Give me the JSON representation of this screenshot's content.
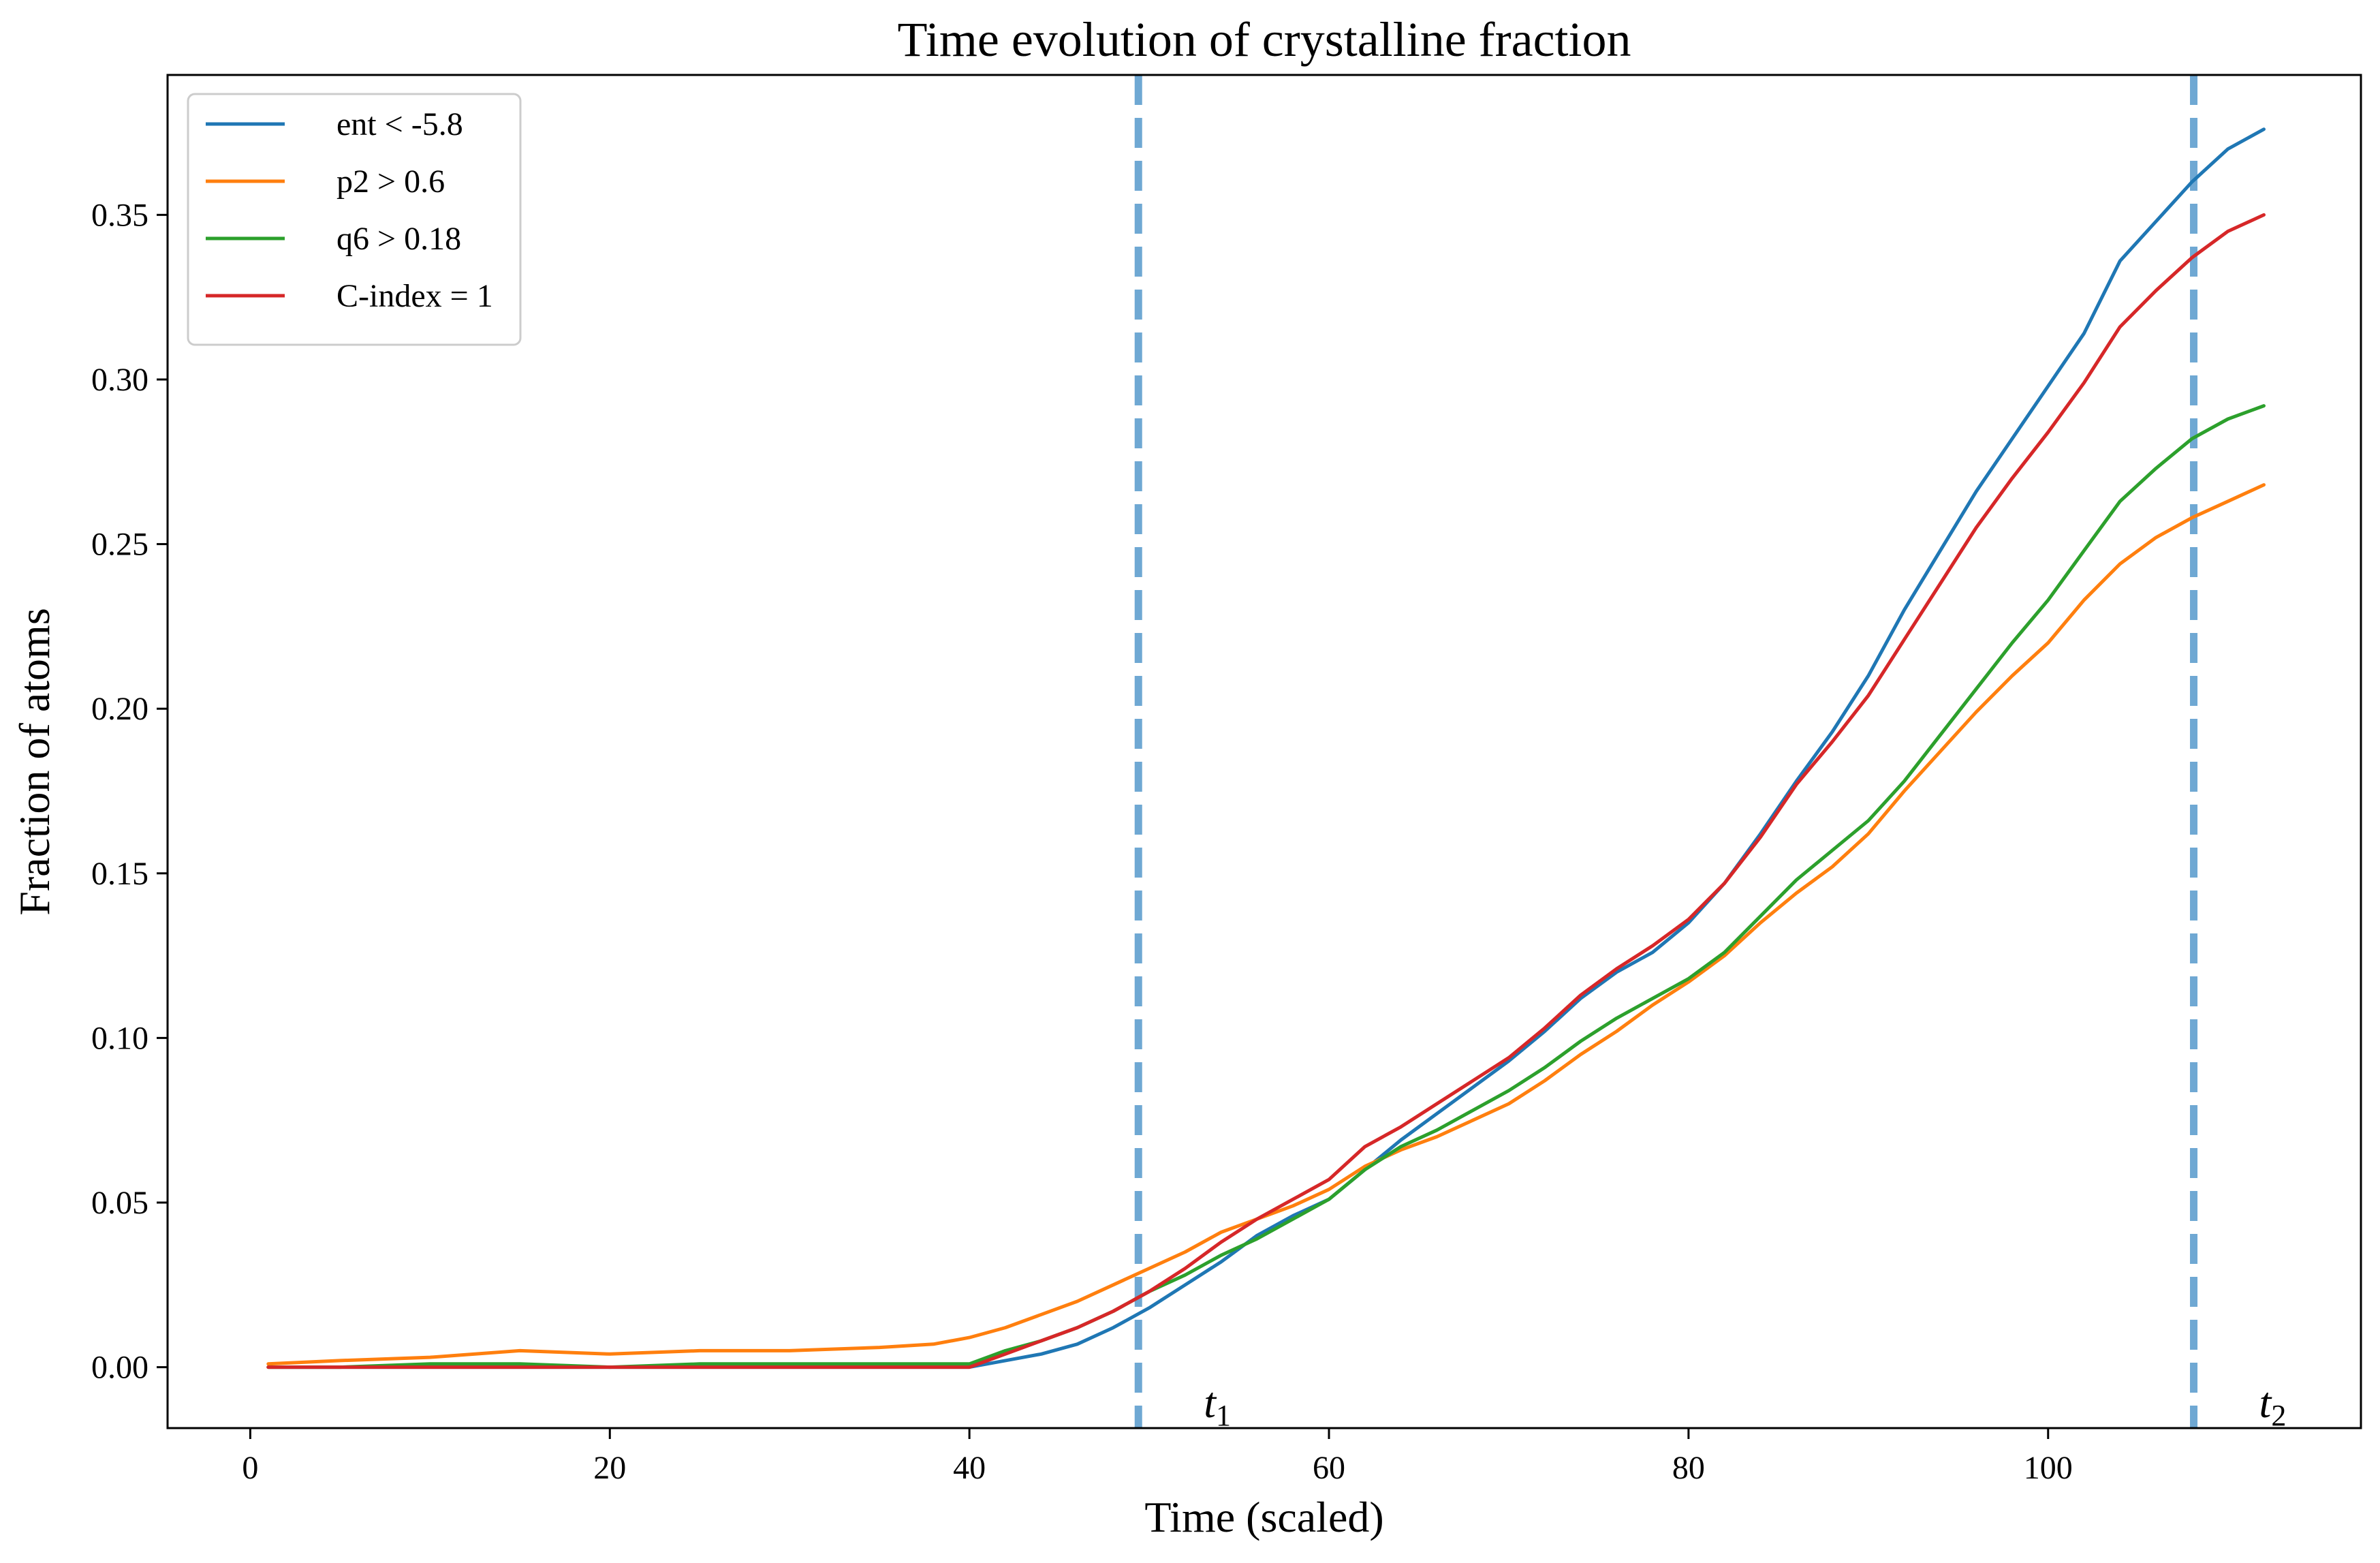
{
  "chart_data": {
    "type": "line",
    "title": "Time evolution of crystalline fraction",
    "xlabel": "Time (scaled)",
    "ylabel": "Fraction of atoms",
    "xlim": [
      -4.6,
      117.4
    ],
    "ylim": [
      -0.0185,
      0.3925
    ],
    "xticks": [
      0,
      20,
      40,
      60,
      80,
      100
    ],
    "xtick_labels": [
      "0",
      "20",
      "40",
      "60",
      "80",
      "100"
    ],
    "yticks": [
      0.0,
      0.05,
      0.1,
      0.15,
      0.2,
      0.25,
      0.3,
      0.35
    ],
    "ytick_labels": [
      "0.00",
      "0.05",
      "0.10",
      "0.15",
      "0.20",
      "0.25",
      "0.30",
      "0.35"
    ],
    "grid": false,
    "legend_position": "upper-left",
    "vertical_lines": [
      {
        "x": 49.4,
        "label": "t",
        "subscript": "1",
        "color": "#6fa8d3",
        "style": "dashed"
      },
      {
        "x": 108.1,
        "label": "t",
        "subscript": "2",
        "color": "#6fa8d3",
        "style": "dashed"
      }
    ],
    "x": [
      1,
      5,
      10,
      15,
      20,
      25,
      30,
      35,
      38,
      40,
      42,
      44,
      46,
      48,
      50,
      52,
      54,
      56,
      58,
      60,
      62,
      64,
      66,
      68,
      70,
      72,
      74,
      76,
      78,
      80,
      82,
      84,
      86,
      88,
      90,
      92,
      94,
      96,
      98,
      100,
      102,
      104,
      106,
      108,
      110,
      112
    ],
    "series": [
      {
        "name": "ent < -5.8",
        "color": "#1f77b4",
        "values": [
          0.0,
          0.0,
          0.0,
          0.0,
          0.0,
          0.0,
          0.0,
          0.0,
          0.0,
          0.0,
          0.002,
          0.004,
          0.007,
          0.012,
          0.018,
          0.025,
          0.032,
          0.04,
          0.046,
          0.051,
          0.06,
          0.069,
          0.077,
          0.085,
          0.093,
          0.102,
          0.112,
          0.12,
          0.126,
          0.135,
          0.147,
          0.162,
          0.178,
          0.193,
          0.21,
          0.23,
          0.248,
          0.266,
          0.282,
          0.298,
          0.314,
          0.336,
          0.348,
          0.36,
          0.37,
          0.376
        ]
      },
      {
        "name": "p2 > 0.6",
        "color": "#ff7f0e",
        "values": [
          0.001,
          0.002,
          0.003,
          0.005,
          0.004,
          0.005,
          0.005,
          0.006,
          0.007,
          0.009,
          0.012,
          0.016,
          0.02,
          0.025,
          0.03,
          0.035,
          0.041,
          0.045,
          0.049,
          0.054,
          0.061,
          0.066,
          0.07,
          0.075,
          0.08,
          0.087,
          0.095,
          0.102,
          0.11,
          0.117,
          0.125,
          0.135,
          0.144,
          0.152,
          0.162,
          0.175,
          0.187,
          0.199,
          0.21,
          0.22,
          0.233,
          0.244,
          0.252,
          0.258,
          0.263,
          0.268
        ]
      },
      {
        "name": "q6 > 0.18",
        "color": "#2ca02c",
        "values": [
          0.0,
          0.0,
          0.001,
          0.001,
          0.0,
          0.001,
          0.001,
          0.001,
          0.001,
          0.001,
          0.005,
          0.008,
          0.012,
          0.017,
          0.023,
          0.028,
          0.034,
          0.039,
          0.045,
          0.051,
          0.06,
          0.067,
          0.072,
          0.078,
          0.084,
          0.091,
          0.099,
          0.106,
          0.112,
          0.118,
          0.126,
          0.137,
          0.148,
          0.157,
          0.166,
          0.178,
          0.192,
          0.206,
          0.22,
          0.233,
          0.248,
          0.263,
          0.273,
          0.282,
          0.288,
          0.292
        ]
      },
      {
        "name": "C-index = 1",
        "color": "#d62728",
        "values": [
          0.0,
          0.0,
          0.0,
          0.0,
          0.0,
          0.0,
          0.0,
          0.0,
          0.0,
          0.0,
          0.004,
          0.008,
          0.012,
          0.017,
          0.023,
          0.03,
          0.038,
          0.045,
          0.051,
          0.057,
          0.067,
          0.073,
          0.08,
          0.087,
          0.094,
          0.103,
          0.113,
          0.121,
          0.128,
          0.136,
          0.147,
          0.161,
          0.177,
          0.19,
          0.204,
          0.221,
          0.238,
          0.255,
          0.27,
          0.284,
          0.299,
          0.316,
          0.327,
          0.337,
          0.345,
          0.35
        ]
      }
    ]
  }
}
